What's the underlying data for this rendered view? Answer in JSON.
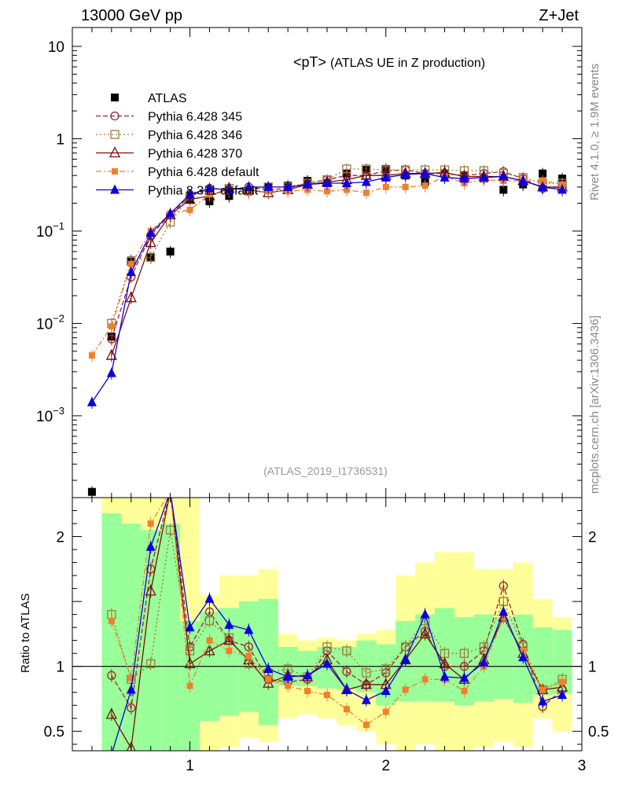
{
  "header": {
    "left": "13000 GeV pp",
    "right": "Z+Jet"
  },
  "side_text": {
    "rivet": "Rivet 4.1.0, ≥ 1.9M events",
    "mcplots": "mcplots.cern.ch [arXiv:1306.3436]"
  },
  "chart_data": [
    {
      "type": "scatter",
      "panel": "main",
      "title": "<pT>",
      "title_suffix": "(ATLAS UE in Z production)",
      "analysis_tag": "(ATLAS_2019_I1736531)",
      "xlabel": "",
      "ylabel": "",
      "xlim": [
        0.4,
        3.0
      ],
      "ylim": [
        0.00013,
        16
      ],
      "yscale": "log",
      "ytick_labels": [
        {
          "value": 10,
          "label": "10"
        },
        {
          "value": 1,
          "label": "1"
        },
        {
          "value": 0.1,
          "base": "10",
          "exp": "−1"
        },
        {
          "value": 0.01,
          "base": "10",
          "exp": "−2"
        },
        {
          "value": 0.001,
          "base": "10",
          "exp": "−3"
        }
      ],
      "legend_position": "top-left",
      "x": [
        0.5,
        0.6,
        0.7,
        0.8,
        0.9,
        1.0,
        1.1,
        1.2,
        1.3,
        1.4,
        1.5,
        1.6,
        1.7,
        1.8,
        1.9,
        2.0,
        2.1,
        2.2,
        2.3,
        2.4,
        2.5,
        2.6,
        2.7,
        2.8,
        2.9
      ],
      "series": [
        {
          "name": "ATLAS",
          "color": "#000000",
          "marker": "filled-square",
          "line": "none",
          "values": [
            0.00015,
            0.0072,
            0.048,
            0.052,
            0.06,
            0.22,
            0.21,
            0.24,
            0.27,
            0.3,
            0.31,
            0.35,
            0.33,
            0.42,
            0.46,
            0.47,
            0.4,
            0.34,
            0.42,
            0.4,
            0.37,
            0.28,
            0.32,
            0.42,
            0.37
          ]
        },
        {
          "name": "Pythia 6.428 345",
          "color": "#a0242b",
          "marker": "open-circle",
          "line": "dashed",
          "values": [
            null,
            0.0068,
            0.032,
            0.09,
            0.15,
            0.24,
            0.29,
            0.28,
            0.3,
            0.28,
            0.29,
            0.33,
            0.36,
            0.4,
            0.4,
            0.45,
            0.46,
            0.42,
            0.42,
            0.4,
            0.42,
            0.44,
            0.37,
            0.29,
            0.3
          ]
        },
        {
          "name": "Pythia 6.428 346",
          "color": "#9c7a3c",
          "marker": "open-square",
          "line": "dotted",
          "values": [
            null,
            0.01,
            0.047,
            0.052,
            0.125,
            0.24,
            0.28,
            0.29,
            0.28,
            0.3,
            0.3,
            0.33,
            0.36,
            0.47,
            0.47,
            0.46,
            0.46,
            0.46,
            0.46,
            0.45,
            0.45,
            0.42,
            0.38,
            0.33,
            0.33
          ]
        },
        {
          "name": "Pythia 6.428 370",
          "color": "#7a0e0e",
          "marker": "open-triangle",
          "line": "solid",
          "values": [
            null,
            0.0045,
            0.019,
            0.075,
            0.15,
            0.22,
            0.24,
            0.29,
            0.28,
            0.26,
            0.28,
            0.32,
            0.34,
            0.36,
            0.4,
            0.4,
            0.42,
            0.42,
            0.43,
            0.39,
            0.39,
            0.39,
            0.35,
            0.3,
            0.3
          ]
        },
        {
          "name": "Pythia 6.428 default",
          "color": "#f0802c",
          "marker": "filled-square-small",
          "line": "dashdot",
          "values": [
            0.0045,
            0.0093,
            0.044,
            0.1,
            0.155,
            0.17,
            0.25,
            0.27,
            0.26,
            0.27,
            0.27,
            0.28,
            0.27,
            0.28,
            0.26,
            0.3,
            0.3,
            0.31,
            0.39,
            0.33,
            0.36,
            0.35,
            0.35,
            0.35,
            0.32
          ]
        },
        {
          "name": "Pythia 8.311 default",
          "color": "#0b00e0",
          "marker": "filled-triangle",
          "line": "solid",
          "values": [
            0.0014,
            0.0029,
            0.036,
            0.095,
            0.155,
            0.25,
            0.29,
            0.28,
            0.3,
            0.3,
            0.3,
            0.32,
            0.33,
            0.33,
            0.34,
            0.38,
            0.41,
            0.42,
            0.38,
            0.37,
            0.38,
            0.39,
            0.35,
            0.3,
            0.28
          ]
        }
      ]
    },
    {
      "type": "scatter",
      "panel": "ratio",
      "xlabel": "",
      "ylabel": "Ratio to ATLAS",
      "xlim": [
        0.4,
        3.0
      ],
      "ylim": [
        0.35,
        2.3
      ],
      "xtick_labels": [
        {
          "value": 1,
          "label": "1"
        },
        {
          "value": 2,
          "label": "2"
        },
        {
          "value": 3,
          "label": "3"
        }
      ],
      "ytick_labels": [
        {
          "value": 2,
          "label": "2"
        },
        {
          "value": 1,
          "label": "1"
        },
        {
          "value": 0.5,
          "label": "0.5"
        }
      ],
      "reference_line": 1,
      "band_colors": {
        "outer": "#ffff99",
        "inner": "#99ff99"
      },
      "bands": {
        "x_edges": [
          0.55,
          0.65,
          0.75,
          0.85,
          0.95,
          1.05,
          1.15,
          1.25,
          1.35,
          1.45,
          1.55,
          1.65,
          1.75,
          1.85,
          1.95,
          2.05,
          2.15,
          2.25,
          2.35,
          2.45,
          2.55,
          2.65,
          2.75,
          2.85,
          2.95
        ],
        "outer_low": [
          0.35,
          0.35,
          0.35,
          0.35,
          0.35,
          0.35,
          0.38,
          0.45,
          0.42,
          0.6,
          0.63,
          0.6,
          0.55,
          0.5,
          0.4,
          0.35,
          0.4,
          0.35,
          0.35,
          0.38,
          0.42,
          0.38,
          0.6,
          0.5
        ],
        "outer_high": [
          2.3,
          2.3,
          2.3,
          2.3,
          2.3,
          1.55,
          1.7,
          1.7,
          1.75,
          1.25,
          1.2,
          1.22,
          1.2,
          1.25,
          1.28,
          1.7,
          1.8,
          1.88,
          1.88,
          1.75,
          1.75,
          1.8,
          1.52,
          1.38
        ],
        "inner_low": [
          0.35,
          0.35,
          0.35,
          0.35,
          0.35,
          0.58,
          0.62,
          0.65,
          0.55,
          0.85,
          0.85,
          0.83,
          0.82,
          0.8,
          0.7,
          0.73,
          0.73,
          0.73,
          0.7,
          0.73,
          0.75,
          0.72,
          0.78,
          0.79
        ],
        "inner_high": [
          2.18,
          2.1,
          2.05,
          2.1,
          1.35,
          1.42,
          1.45,
          1.5,
          1.52,
          1.15,
          1.12,
          1.15,
          1.15,
          1.2,
          1.17,
          1.35,
          1.4,
          1.45,
          1.38,
          1.4,
          1.38,
          1.4,
          1.3,
          1.28
        ]
      },
      "x": [
        0.5,
        0.6,
        0.7,
        0.8,
        0.9,
        1.0,
        1.1,
        1.2,
        1.3,
        1.4,
        1.5,
        1.6,
        1.7,
        1.8,
        1.9,
        2.0,
        2.1,
        2.2,
        2.3,
        2.4,
        2.5,
        2.6,
        2.7,
        2.8,
        2.9
      ],
      "series": [
        {
          "name": "Pythia 6.428 345",
          "color": "#a0242b",
          "marker": "open-circle",
          "line": "dashed",
          "values": [
            null,
            0.93,
            0.68,
            1.75,
            2.35,
            1.15,
            1.42,
            1.2,
            1.15,
            0.9,
            0.88,
            0.9,
            1.12,
            0.96,
            0.86,
            0.95,
            1.15,
            1.27,
            1.0,
            1.0,
            1.12,
            1.62,
            1.17,
            0.69,
            0.82
          ]
        },
        {
          "name": "Pythia 6.428 346",
          "color": "#9c7a3c",
          "marker": "open-square",
          "line": "dotted",
          "values": [
            null,
            1.4,
            0.9,
            1.02,
            2.05,
            1.12,
            1.35,
            1.22,
            1.02,
            0.95,
            0.98,
            0.92,
            1.15,
            1.12,
            0.95,
            0.98,
            1.15,
            1.35,
            1.1,
            1.1,
            1.15,
            1.5,
            1.15,
            0.82,
            0.9
          ]
        },
        {
          "name": "Pythia 6.428 370",
          "color": "#7a0e0e",
          "marker": "open-triangle",
          "line": "solid",
          "values": [
            null,
            0.63,
            0.37,
            1.58,
            2.35,
            1.02,
            1.12,
            1.2,
            1.05,
            0.87,
            0.93,
            0.92,
            1.05,
            0.82,
            0.86,
            0.86,
            1.05,
            1.25,
            1.02,
            0.9,
            1.05,
            1.38,
            1.1,
            0.82,
            0.84
          ]
        },
        {
          "name": "Pythia 6.428 default",
          "color": "#f0802c",
          "marker": "filled-square-small",
          "line": "dashdot",
          "values": [
            null,
            1.35,
            0.91,
            2.1,
            2.35,
            0.85,
            1.2,
            1.12,
            1.08,
            0.9,
            0.85,
            0.81,
            0.78,
            0.67,
            0.55,
            0.65,
            0.82,
            0.9,
            0.9,
            0.81,
            1.0,
            1.38,
            1.12,
            0.82,
            0.88
          ]
        },
        {
          "name": "Pythia 8.311 default",
          "color": "#0b00e0",
          "marker": "filled-triangle",
          "line": "solid",
          "values": [
            null,
            0.32,
            0.82,
            1.92,
            2.35,
            1.3,
            1.52,
            1.32,
            1.28,
            0.98,
            0.92,
            0.93,
            1.02,
            0.82,
            0.74,
            0.81,
            1.05,
            1.4,
            0.92,
            0.91,
            1.03,
            1.42,
            1.07,
            0.73,
            0.78
          ]
        }
      ]
    }
  ]
}
